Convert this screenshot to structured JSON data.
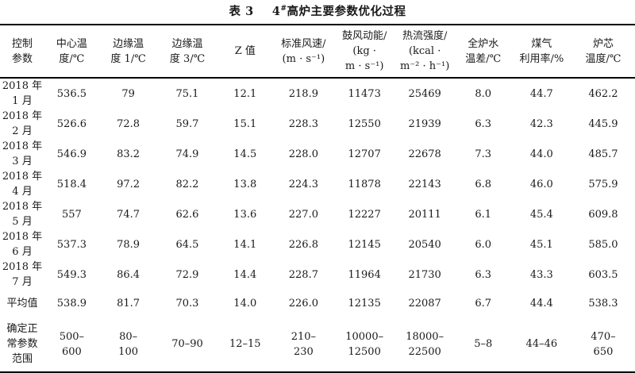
{
  "page": {
    "background": "#ffffff",
    "text_color": "#1a1a1a"
  },
  "table": {
    "title": {
      "label": "表 3",
      "furnace": "4",
      "superscript": "#",
      "text": "高炉主要参数优化过程"
    },
    "headers": [
      {
        "text": "控制\n参数"
      },
      {
        "text": "中心温\n度/℃"
      },
      {
        "text": "边缘温\n度 1/℃"
      },
      {
        "text": "边缘温\n度 3/℃"
      },
      {
        "text": "Z 值"
      },
      {
        "text": "标准风速/\n(m · s⁻¹)"
      },
      {
        "text": "鼓风动能/\n(kg ·\nm · s⁻¹)"
      },
      {
        "text": "热流强度/\n(kcal ·\nm⁻² · h⁻¹)"
      },
      {
        "text": "全炉水\n温差/℃"
      },
      {
        "text": "煤气\n利用率/%"
      },
      {
        "text": "炉芯\n温度/℃"
      }
    ],
    "rows": [
      {
        "label": "2018 年\n1 月",
        "values": [
          "536.5",
          "79",
          "75.1",
          "12.1",
          "218.9",
          "11473",
          "25469",
          "8.0",
          "44.7",
          "462.2"
        ]
      },
      {
        "label": "2018 年\n2 月",
        "values": [
          "526.6",
          "72.8",
          "59.7",
          "15.1",
          "228.3",
          "12550",
          "21939",
          "6.3",
          "42.3",
          "445.9"
        ]
      },
      {
        "label": "2018 年\n3 月",
        "values": [
          "546.9",
          "83.2",
          "74.9",
          "14.5",
          "228.0",
          "12707",
          "22678",
          "7.3",
          "44.0",
          "485.7"
        ]
      },
      {
        "label": "2018 年\n4 月",
        "values": [
          "518.4",
          "97.2",
          "82.2",
          "13.8",
          "224.3",
          "11878",
          "22143",
          "6.8",
          "46.0",
          "575.9"
        ]
      },
      {
        "label": "2018 年\n5 月",
        "values": [
          "557",
          "74.7",
          "62.6",
          "13.6",
          "227.0",
          "12227",
          "20111",
          "6.1",
          "45.4",
          "609.8"
        ]
      },
      {
        "label": "2018 年\n6 月",
        "values": [
          "537.3",
          "78.9",
          "64.5",
          "14.1",
          "226.8",
          "12145",
          "20540",
          "6.0",
          "45.1",
          "585.0"
        ]
      },
      {
        "label": "2018 年\n7 月",
        "values": [
          "549.3",
          "86.4",
          "72.9",
          "14.4",
          "228.7",
          "11964",
          "21730",
          "6.3",
          "43.3",
          "603.5"
        ]
      },
      {
        "label": "平均值",
        "values": [
          "538.9",
          "81.7",
          "70.3",
          "14.0",
          "226.0",
          "12135",
          "22087",
          "6.7",
          "44.4",
          "538.3"
        ]
      },
      {
        "label": "确定正\n常参数\n范围",
        "values": [
          "500–\n600",
          "80–\n100",
          "70–90",
          "12–15",
          "210–\n230",
          "10000–\n12500",
          "18000–\n22500",
          "5–8",
          "44–46",
          "470–\n650"
        ]
      }
    ]
  }
}
